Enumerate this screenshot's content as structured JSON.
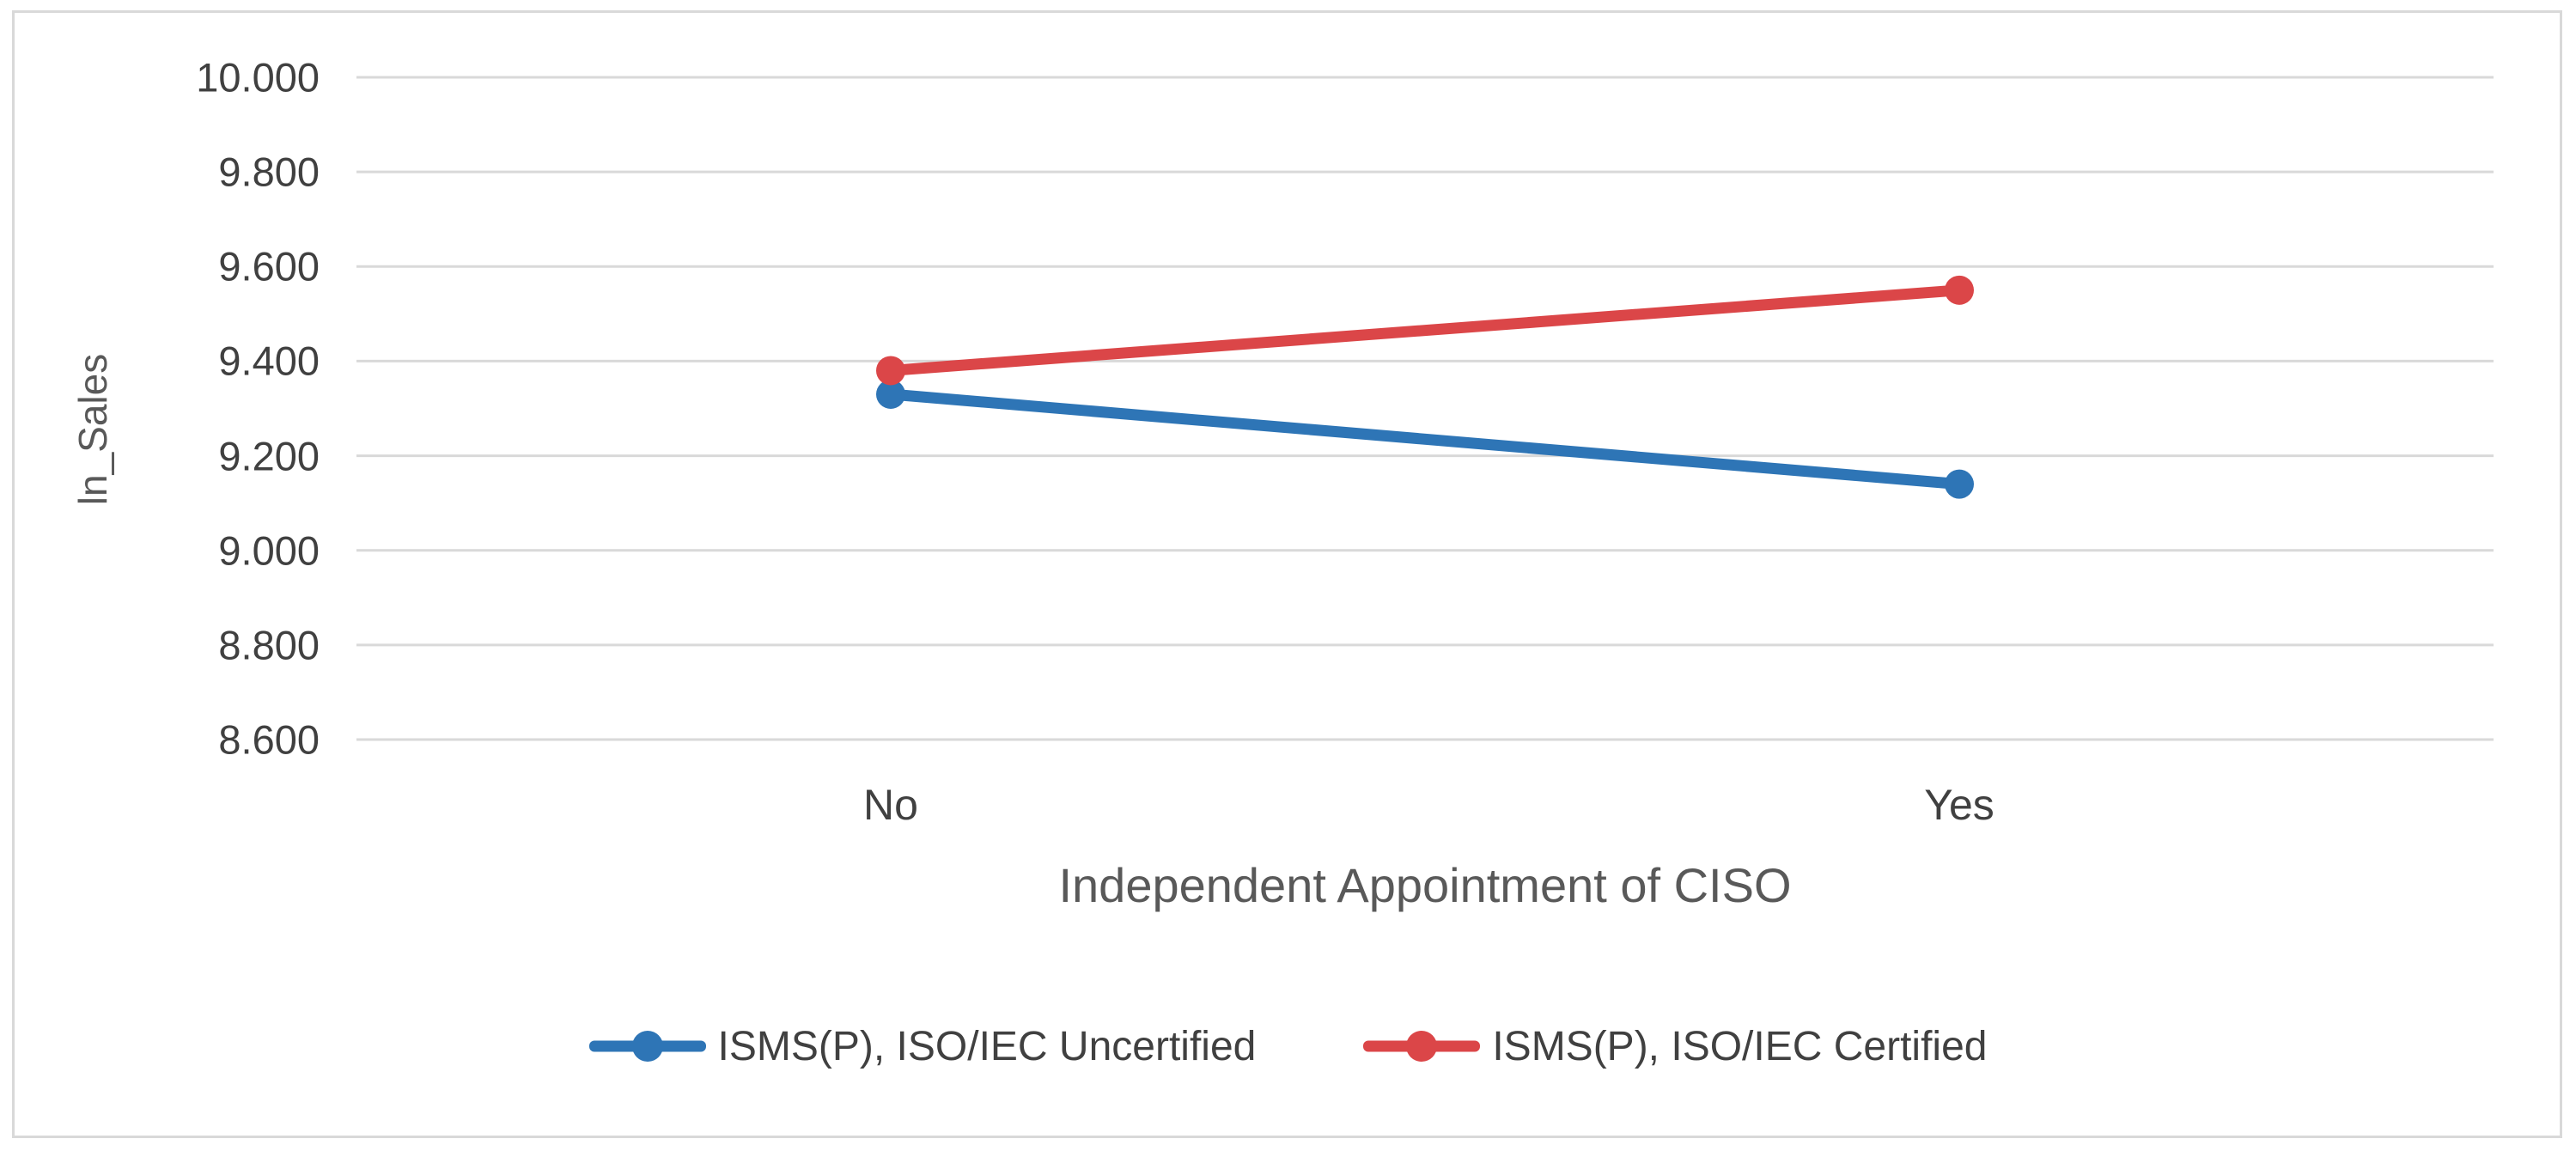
{
  "chart_data": {
    "type": "line",
    "categories": [
      "No",
      "Yes"
    ],
    "series": [
      {
        "name": "ISMS(P), ISO/IEC Uncertified",
        "color": "#2E75B6",
        "values": [
          9.33,
          9.14
        ]
      },
      {
        "name": "ISMS(P), ISO/IEC Certified",
        "color": "#DB4648",
        "values": [
          9.38,
          9.55
        ]
      }
    ],
    "title": "",
    "xlabel": "Independent Appointment of CISO",
    "ylabel": "ln_Sales",
    "ylim": [
      8.6,
      10.0
    ],
    "ytick_step": 0.2,
    "ytick_labels": [
      "10.000",
      "9.800",
      "9.600",
      "9.400",
      "9.200",
      "9.000",
      "8.800",
      "8.600"
    ],
    "grid": "horizontal-only",
    "legend_position": "bottom-center",
    "colors": {
      "gridline": "#D9D9D9",
      "frame_border": "#D9D9D9",
      "tick_text": "#404040",
      "axis_title_text": "#595959"
    }
  }
}
